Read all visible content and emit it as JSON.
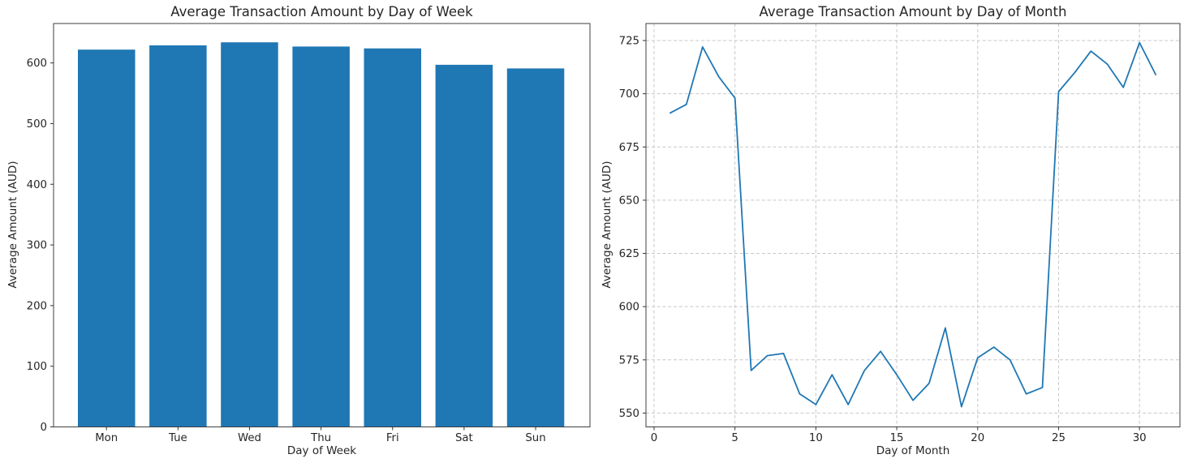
{
  "style": {
    "background": "#ffffff",
    "accent_color": "#1f77b4",
    "text_color": "#262626",
    "grid_color": "#c7c7c7",
    "spine_color": "#3f3f3f",
    "tick_color": "#333333"
  },
  "chart_data": [
    {
      "type": "bar",
      "title": "Average Transaction Amount by Day of Week",
      "xlabel": "Day of Week",
      "ylabel": "Average Amount (AUD)",
      "categories": [
        "Mon",
        "Tue",
        "Wed",
        "Thu",
        "Fri",
        "Sat",
        "Sun"
      ],
      "values": [
        622,
        629,
        634,
        627,
        624,
        597,
        591
      ],
      "bar_color": "#1f77b4",
      "bar_width": 0.8,
      "xlim": [
        -0.74,
        6.76
      ],
      "ylim": [
        0,
        665
      ],
      "yticks": [
        0,
        100,
        200,
        300,
        400,
        500,
        600
      ],
      "grid": false,
      "legend": "none"
    },
    {
      "type": "line",
      "title": "Average Transaction Amount by Day of Month",
      "xlabel": "Day of Month",
      "ylabel": "Average Amount (AUD)",
      "x": [
        1,
        2,
        3,
        4,
        5,
        6,
        7,
        8,
        9,
        10,
        11,
        12,
        13,
        14,
        15,
        16,
        17,
        18,
        19,
        20,
        21,
        22,
        23,
        24,
        25,
        26,
        27,
        28,
        29,
        30,
        31
      ],
      "values": [
        691,
        695,
        722,
        708,
        698,
        570,
        577,
        578,
        559,
        554,
        568,
        554,
        570,
        579,
        568,
        556,
        564,
        590,
        553,
        576,
        581,
        575,
        559,
        562,
        701,
        710,
        720,
        714,
        703,
        724,
        709
      ],
      "line_color": "#1f77b4",
      "line_width": 1.8,
      "xlim": [
        -0.5,
        32.5
      ],
      "ylim": [
        543.5,
        733
      ],
      "xticks": [
        0,
        5,
        10,
        15,
        20,
        25,
        30
      ],
      "yticks": [
        550,
        575,
        600,
        625,
        650,
        675,
        700,
        725
      ],
      "grid": true,
      "legend": "none"
    }
  ]
}
